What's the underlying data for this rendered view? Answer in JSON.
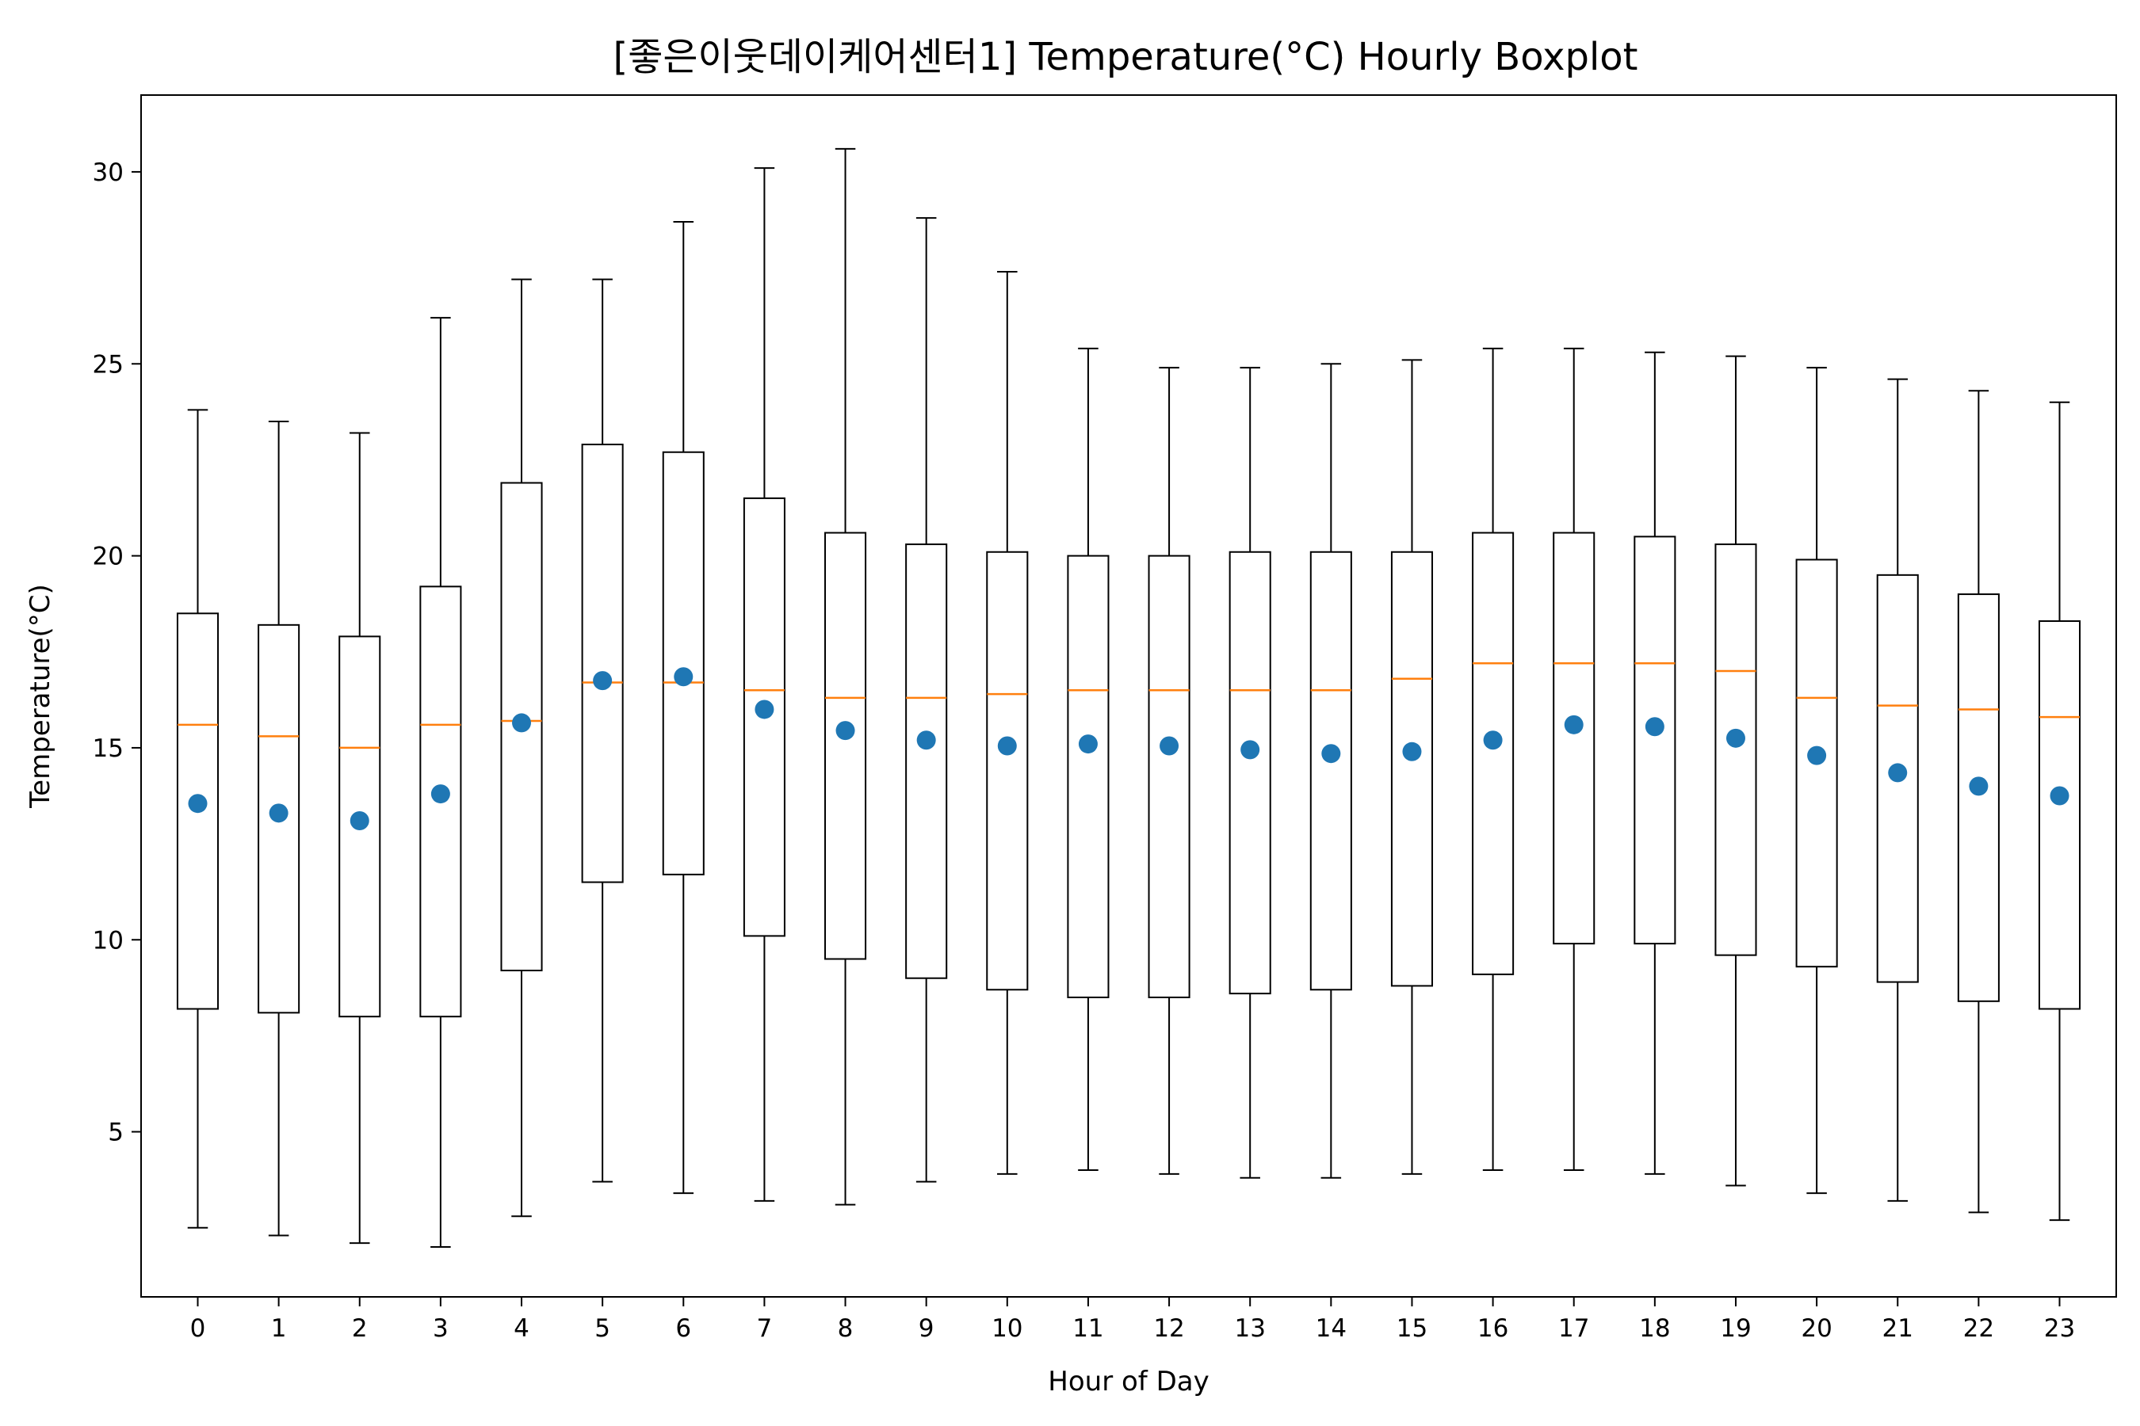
{
  "chart_data": {
    "type": "boxplot",
    "title": "[좋은이웃데이케어센터1] Temperature(°C) Hourly Boxplot",
    "xlabel": "Hour of Day",
    "ylabel": "Temperature(°C)",
    "ylim": [
      0.7,
      32.0
    ],
    "yticks": [
      5,
      10,
      15,
      20,
      25,
      30
    ],
    "grid": false,
    "colors": {
      "box": "#000000",
      "median": "#ff7f0e",
      "mean": "#1f77b4"
    },
    "categories": [
      "0",
      "1",
      "2",
      "3",
      "4",
      "5",
      "6",
      "7",
      "8",
      "9",
      "10",
      "11",
      "12",
      "13",
      "14",
      "15",
      "16",
      "17",
      "18",
      "19",
      "20",
      "21",
      "22",
      "23"
    ],
    "whisker_low": [
      2.5,
      2.3,
      2.1,
      2.0,
      2.8,
      3.7,
      3.4,
      3.2,
      3.1,
      3.7,
      3.9,
      4.0,
      3.9,
      3.8,
      3.8,
      3.9,
      4.0,
      4.0,
      3.9,
      3.6,
      3.4,
      3.2,
      2.9,
      2.7
    ],
    "q1": [
      8.2,
      8.1,
      8.0,
      8.0,
      9.2,
      11.5,
      11.7,
      10.1,
      9.5,
      9.0,
      8.7,
      8.5,
      8.5,
      8.6,
      8.7,
      8.8,
      9.1,
      9.9,
      9.9,
      9.6,
      9.3,
      8.9,
      8.4,
      8.2
    ],
    "median": [
      15.6,
      15.3,
      15.0,
      15.6,
      15.7,
      16.7,
      16.7,
      16.5,
      16.3,
      16.3,
      16.4,
      16.5,
      16.5,
      16.5,
      16.5,
      16.8,
      17.2,
      17.2,
      17.2,
      17.0,
      16.3,
      16.1,
      16.0,
      15.8
    ],
    "q3": [
      18.5,
      18.2,
      17.9,
      19.2,
      21.9,
      22.9,
      22.7,
      21.5,
      20.6,
      20.3,
      20.1,
      20.0,
      20.0,
      20.1,
      20.1,
      20.1,
      20.6,
      20.6,
      20.5,
      20.3,
      19.9,
      19.5,
      19.0,
      18.3
    ],
    "whisker_high": [
      23.8,
      23.5,
      23.2,
      26.2,
      27.2,
      27.2,
      28.7,
      30.1,
      30.6,
      28.8,
      27.4,
      25.4,
      24.9,
      24.9,
      25.0,
      25.1,
      25.4,
      25.4,
      25.3,
      25.2,
      24.9,
      24.6,
      24.3,
      24.0
    ],
    "mean": [
      13.55,
      13.3,
      13.1,
      13.8,
      15.65,
      16.75,
      16.85,
      16.0,
      15.45,
      15.2,
      15.05,
      15.1,
      15.05,
      14.95,
      14.85,
      14.9,
      15.2,
      15.6,
      15.55,
      15.25,
      14.8,
      14.35,
      14.0,
      13.75
    ]
  }
}
